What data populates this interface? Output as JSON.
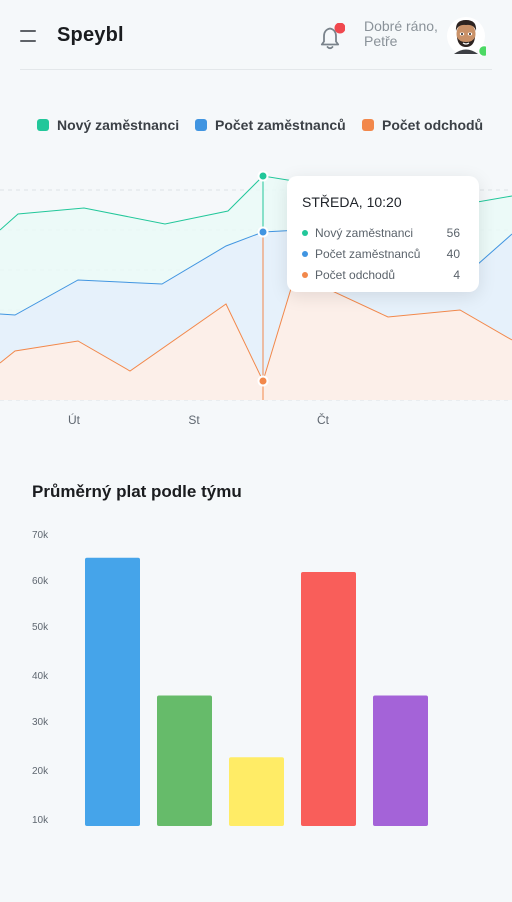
{
  "header": {
    "app_name": "Speybl",
    "greeting_line1": "Dobré ráno,",
    "greeting_line2": "Petře"
  },
  "colors": {
    "new_employees": "#22c79a",
    "employee_count": "#4195e1",
    "departures": "#f2884b",
    "notification": "#f0484e",
    "online": "#4cd964"
  },
  "chart_data": [
    {
      "type": "line",
      "x": [
        "Út",
        "St",
        "Čt"
      ],
      "series": [
        {
          "name": "Nový zaměstnanci"
        },
        {
          "name": "Počet zaměstnanců"
        },
        {
          "name": "Počet odchodů"
        }
      ],
      "legend_position": "top",
      "grid": true,
      "tooltip": {
        "title": "STŘEDA, 10:20",
        "rows": [
          {
            "label": "Nový zaměstnanci",
            "value": "56"
          },
          {
            "label": "Počet zaměstnanců",
            "value": "40"
          },
          {
            "label": "Počet odchodů",
            "value": "4"
          }
        ]
      }
    },
    {
      "type": "bar",
      "title": "Průměrný plat podle týmu",
      "y_ticks": [
        "70k",
        "60k",
        "50k",
        "40k",
        "30k",
        "20k",
        "10k"
      ],
      "ylim": [
        10000,
        70000
      ],
      "values": [
        65000,
        36000,
        23000,
        62000,
        36000
      ],
      "colors": [
        "#45a4ea",
        "#66bb6a",
        "#ffec66",
        "#f95e5a",
        "#a463d8"
      ],
      "grid": false
    }
  ]
}
